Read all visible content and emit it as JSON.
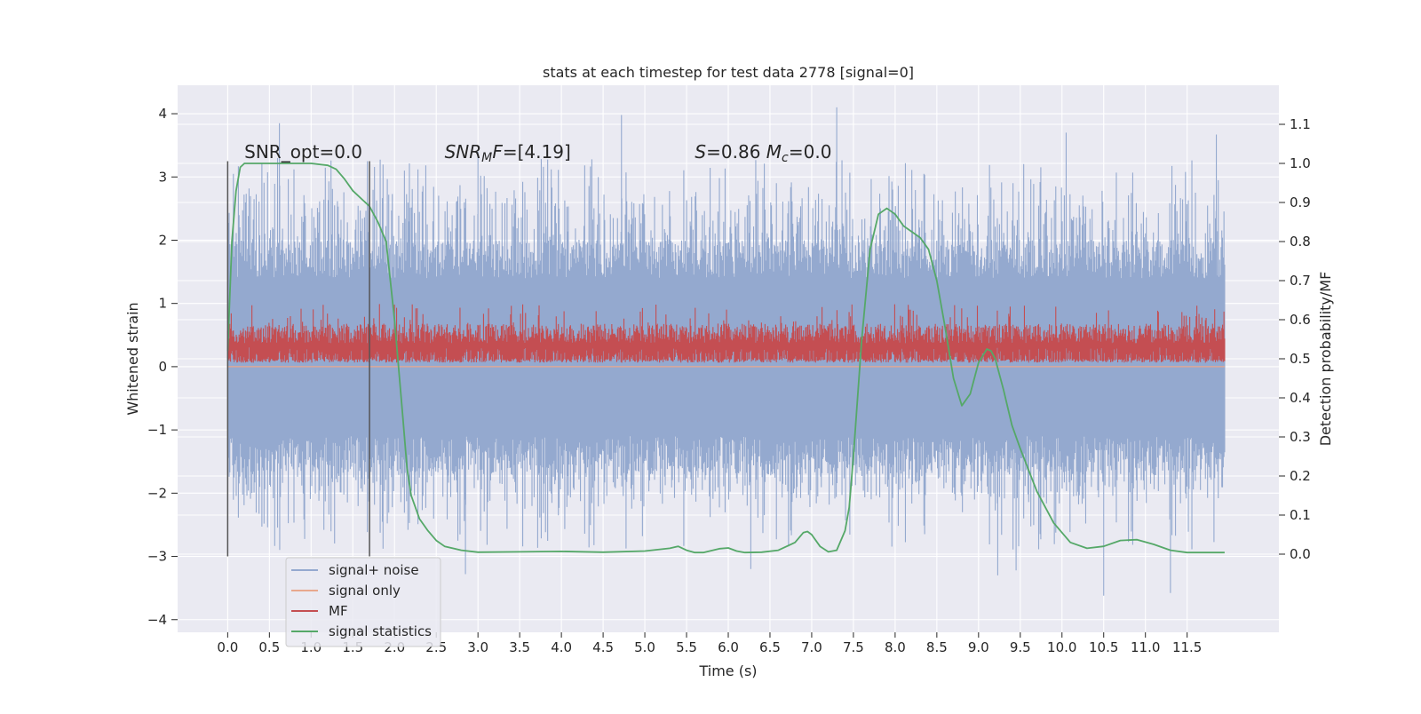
{
  "chart_data": {
    "type": "line",
    "title": "stats at each timestep for test data 2778 [signal=0]",
    "xlabel": "Time (s)",
    "ylabel": "Whitened strain",
    "y2label": "Detection probability/MF",
    "xlim": [
      -0.6,
      12.6
    ],
    "ylim": [
      -4.2,
      4.45
    ],
    "y2lim": [
      -0.2,
      1.2
    ],
    "xticks": [
      0.0,
      0.5,
      1.0,
      1.5,
      2.0,
      2.5,
      3.0,
      3.5,
      4.0,
      4.5,
      5.0,
      5.5,
      6.0,
      6.5,
      7.0,
      7.5,
      8.0,
      8.5,
      9.0,
      9.5,
      10.0,
      10.5,
      11.0,
      11.5
    ],
    "xtick_labels": [
      "0.0",
      "0.5",
      "1.0",
      "1.5",
      "2.0",
      "2.5",
      "3.0",
      "3.5",
      "4.0",
      "4.5",
      "5.0",
      "5.5",
      "6.0",
      "6.5",
      "7.0",
      "7.5",
      "8.0",
      "8.5",
      "9.0",
      "9.5",
      "10.0",
      "10.5",
      "11.0",
      "11.5"
    ],
    "yticks": [
      -4,
      -3,
      -2,
      -1,
      0,
      1,
      2,
      3,
      4
    ],
    "ytick_labels": [
      "−4",
      "−3",
      "−2",
      "−1",
      "0",
      "1",
      "2",
      "3",
      "4"
    ],
    "y2ticks": [
      0.0,
      0.1,
      0.2,
      0.3,
      0.4,
      0.5,
      0.6,
      0.7,
      0.8,
      0.9,
      1.0,
      1.1
    ],
    "y2tick_labels": [
      "0.0",
      "0.1",
      "0.2",
      "0.3",
      "0.4",
      "0.5",
      "0.6",
      "0.7",
      "0.8",
      "0.9",
      "1.0",
      "1.1"
    ],
    "grid": true,
    "vlines": [
      {
        "x": 0.0,
        "ymin": -3.0,
        "ymax": 3.25
      },
      {
        "x": 1.7,
        "ymin": -3.0,
        "ymax": 3.25
      }
    ],
    "annotations": [
      {
        "parts": [
          {
            "text": "SNR_opt=0.0",
            "italic": false
          }
        ],
        "x": 0.2,
        "y": 3.3
      },
      {
        "parts": [
          {
            "text": "SNR",
            "italic": true
          },
          {
            "text": "M",
            "italic": true,
            "sub": true
          },
          {
            "text": "F=[4.19]",
            "italic": false,
            "italic_first": true
          }
        ],
        "x": 2.6,
        "y": 3.3
      },
      {
        "parts": [
          {
            "text": "S",
            "italic": true
          },
          {
            "text": "=0.86   ",
            "italic": false
          },
          {
            "text": "M",
            "italic": true
          },
          {
            "text": "c",
            "italic": true,
            "sub": true
          },
          {
            "text": "=0.0",
            "italic": false
          }
        ],
        "x": 5.6,
        "y": 3.3
      }
    ],
    "series": [
      {
        "name": "signal+ noise",
        "color": "#94a9cf",
        "kind": "noise",
        "x_range": [
          0.0,
          11.95
        ],
        "core_band": [
          -1.1,
          1.4
        ],
        "typical_band": [
          -1.9,
          2.4
        ],
        "spike_examples": [
          {
            "x": 0.62,
            "y": 3.85
          },
          {
            "x": 4.72,
            "y": 3.98
          },
          {
            "x": 7.3,
            "y": 4.1
          },
          {
            "x": 10.05,
            "y": 3.7
          },
          {
            "x": 11.85,
            "y": 3.67
          },
          {
            "x": 3.0,
            "y": 3.4
          },
          {
            "x": 10.5,
            "y": -3.62
          },
          {
            "x": 11.3,
            "y": -3.58
          },
          {
            "x": 2.85,
            "y": -3.28
          },
          {
            "x": 9.23,
            "y": -3.3
          },
          {
            "x": 9.45,
            "y": -3.22
          },
          {
            "x": 6.27,
            "y": -3.2
          }
        ]
      },
      {
        "name": "signal only",
        "color": "#e8a88d",
        "kind": "flat",
        "values_summary": "zero everywhere"
      },
      {
        "name": "MF",
        "color": "#c44e52",
        "kind": "mf",
        "axis": "right",
        "x_range": [
          0.0,
          11.95
        ],
        "baseline": 0.5,
        "band": [
          0.5,
          0.59
        ],
        "spike_max": 0.64
      },
      {
        "name": "signal statistics",
        "color": "#55a868",
        "kind": "line",
        "axis": "right",
        "x": [
          0.0,
          0.05,
          0.1,
          0.15,
          0.2,
          0.3,
          0.5,
          0.8,
          1.0,
          1.2,
          1.3,
          1.4,
          1.5,
          1.6,
          1.7,
          1.8,
          1.9,
          2.0,
          2.1,
          2.15,
          2.2,
          2.3,
          2.4,
          2.5,
          2.6,
          2.8,
          3.0,
          3.5,
          4.0,
          4.5,
          5.0,
          5.3,
          5.4,
          5.5,
          5.6,
          5.7,
          5.9,
          6.0,
          6.1,
          6.2,
          6.4,
          6.6,
          6.8,
          6.9,
          6.95,
          7.0,
          7.1,
          7.2,
          7.3,
          7.4,
          7.45,
          7.5,
          7.6,
          7.7,
          7.8,
          7.9,
          8.0,
          8.1,
          8.2,
          8.3,
          8.4,
          8.5,
          8.6,
          8.7,
          8.8,
          8.9,
          9.0,
          9.1,
          9.15,
          9.2,
          9.3,
          9.4,
          9.5,
          9.7,
          9.9,
          10.1,
          10.3,
          10.5,
          10.7,
          10.9,
          11.1,
          11.3,
          11.5,
          11.7,
          11.95
        ],
        "y": [
          0.52,
          0.8,
          0.93,
          0.99,
          1.0,
          1.0,
          1.0,
          1.0,
          1.0,
          0.995,
          0.985,
          0.96,
          0.93,
          0.91,
          0.89,
          0.85,
          0.8,
          0.6,
          0.35,
          0.22,
          0.15,
          0.09,
          0.06,
          0.035,
          0.02,
          0.01,
          0.005,
          0.006,
          0.007,
          0.005,
          0.008,
          0.015,
          0.02,
          0.01,
          0.004,
          0.004,
          0.014,
          0.016,
          0.008,
          0.004,
          0.005,
          0.01,
          0.03,
          0.055,
          0.058,
          0.05,
          0.02,
          0.006,
          0.01,
          0.06,
          0.12,
          0.25,
          0.55,
          0.78,
          0.87,
          0.885,
          0.87,
          0.84,
          0.825,
          0.81,
          0.78,
          0.7,
          0.58,
          0.45,
          0.38,
          0.41,
          0.49,
          0.525,
          0.52,
          0.5,
          0.42,
          0.33,
          0.27,
          0.16,
          0.08,
          0.03,
          0.015,
          0.02,
          0.035,
          0.037,
          0.025,
          0.01,
          0.004,
          0.004,
          0.004
        ]
      }
    ],
    "legend": {
      "position": "lower-left",
      "entries": [
        "signal+ noise",
        "signal only",
        "MF",
        "signal statistics"
      ]
    }
  },
  "colors": {
    "plot_background": "#eaeaf2",
    "grid": "#ffffff",
    "vline": "#555555"
  }
}
